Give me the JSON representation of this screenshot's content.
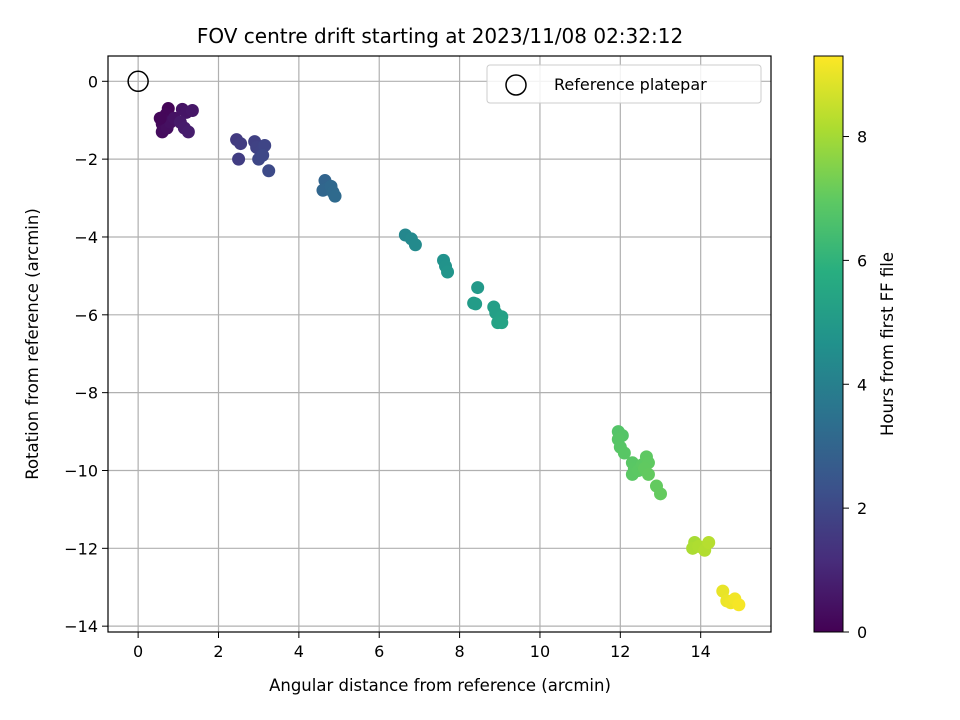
{
  "chart_data": {
    "type": "scatter",
    "title": "FOV centre drift starting at 2023/11/08 02:32:12",
    "xlabel": "Angular distance from reference (arcmin)",
    "ylabel": "Rotation from reference (arcmin)",
    "colorbar_label": "Hours from first FF file",
    "xlim": [
      -0.75,
      15.75
    ],
    "ylim": [
      -14.15,
      0.65
    ],
    "clim": [
      0,
      9.3
    ],
    "x_ticks": [
      0,
      2,
      4,
      6,
      8,
      10,
      12,
      14
    ],
    "y_ticks": [
      0,
      -2,
      -4,
      -6,
      -8,
      -10,
      -12,
      -14
    ],
    "colorbar_ticks": [
      0,
      2,
      4,
      6,
      8
    ],
    "grid": true,
    "colormap": "viridis",
    "legend": {
      "placement": "top-right",
      "entries": [
        "Reference platepar"
      ]
    },
    "reference": {
      "x": 0,
      "y": 0
    },
    "points": [
      {
        "x": 0.75,
        "y": -0.7,
        "c": 0.1
      },
      {
        "x": 0.7,
        "y": -0.85,
        "c": 0.15
      },
      {
        "x": 0.65,
        "y": -1.0,
        "c": 0.2
      },
      {
        "x": 0.6,
        "y": -1.1,
        "c": 0.25
      },
      {
        "x": 0.6,
        "y": -1.3,
        "c": 0.3
      },
      {
        "x": 0.72,
        "y": -1.2,
        "c": 0.35
      },
      {
        "x": 0.8,
        "y": -1.05,
        "c": 0.4
      },
      {
        "x": 0.9,
        "y": -0.95,
        "c": 0.45
      },
      {
        "x": 1.1,
        "y": -0.72,
        "c": 0.5
      },
      {
        "x": 1.2,
        "y": -0.8,
        "c": 0.55
      },
      {
        "x": 1.35,
        "y": -0.75,
        "c": 0.6
      },
      {
        "x": 1.05,
        "y": -1.05,
        "c": 0.65
      },
      {
        "x": 1.15,
        "y": -1.2,
        "c": 0.7
      },
      {
        "x": 1.25,
        "y": -1.3,
        "c": 0.75
      },
      {
        "x": 0.55,
        "y": -0.95,
        "c": 0.15
      },
      {
        "x": 2.45,
        "y": -1.5,
        "c": 1.6
      },
      {
        "x": 2.55,
        "y": -1.6,
        "c": 1.65
      },
      {
        "x": 2.5,
        "y": -2.0,
        "c": 1.7
      },
      {
        "x": 2.9,
        "y": -1.55,
        "c": 1.8
      },
      {
        "x": 2.95,
        "y": -1.7,
        "c": 1.85
      },
      {
        "x": 3.05,
        "y": -1.8,
        "c": 1.9
      },
      {
        "x": 3.15,
        "y": -1.65,
        "c": 1.95
      },
      {
        "x": 3.0,
        "y": -2.0,
        "c": 2.0
      },
      {
        "x": 3.1,
        "y": -1.9,
        "c": 2.05
      },
      {
        "x": 3.25,
        "y": -2.3,
        "c": 2.1
      },
      {
        "x": 4.65,
        "y": -2.55,
        "c": 3.0
      },
      {
        "x": 4.7,
        "y": -2.75,
        "c": 3.05
      },
      {
        "x": 4.6,
        "y": -2.8,
        "c": 3.1
      },
      {
        "x": 4.8,
        "y": -2.7,
        "c": 3.15
      },
      {
        "x": 4.85,
        "y": -2.85,
        "c": 3.2
      },
      {
        "x": 4.9,
        "y": -2.95,
        "c": 3.25
      },
      {
        "x": 6.65,
        "y": -3.95,
        "c": 4.3
      },
      {
        "x": 6.8,
        "y": -4.05,
        "c": 4.35
      },
      {
        "x": 6.9,
        "y": -4.2,
        "c": 4.4
      },
      {
        "x": 7.6,
        "y": -4.6,
        "c": 4.7
      },
      {
        "x": 7.65,
        "y": -4.75,
        "c": 4.75
      },
      {
        "x": 7.7,
        "y": -4.9,
        "c": 4.8
      },
      {
        "x": 8.45,
        "y": -5.3,
        "c": 5.0
      },
      {
        "x": 8.35,
        "y": -5.7,
        "c": 5.05
      },
      {
        "x": 8.4,
        "y": -5.72,
        "c": 5.1
      },
      {
        "x": 8.85,
        "y": -5.8,
        "c": 5.2
      },
      {
        "x": 8.9,
        "y": -5.95,
        "c": 5.25
      },
      {
        "x": 9.05,
        "y": -6.05,
        "c": 5.3
      },
      {
        "x": 8.95,
        "y": -6.2,
        "c": 5.35
      },
      {
        "x": 9.05,
        "y": -6.2,
        "c": 5.4
      },
      {
        "x": 11.95,
        "y": -9.0,
        "c": 6.8
      },
      {
        "x": 12.05,
        "y": -9.1,
        "c": 6.82
      },
      {
        "x": 11.95,
        "y": -9.2,
        "c": 6.84
      },
      {
        "x": 12.0,
        "y": -9.4,
        "c": 6.86
      },
      {
        "x": 12.1,
        "y": -9.55,
        "c": 6.88
      },
      {
        "x": 12.3,
        "y": -9.8,
        "c": 6.9
      },
      {
        "x": 12.35,
        "y": -9.95,
        "c": 6.92
      },
      {
        "x": 12.3,
        "y": -10.1,
        "c": 6.94
      },
      {
        "x": 12.45,
        "y": -10.0,
        "c": 6.96
      },
      {
        "x": 12.55,
        "y": -9.85,
        "c": 6.98
      },
      {
        "x": 12.65,
        "y": -9.65,
        "c": 7.0
      },
      {
        "x": 12.7,
        "y": -9.8,
        "c": 7.02
      },
      {
        "x": 12.6,
        "y": -9.95,
        "c": 7.04
      },
      {
        "x": 12.7,
        "y": -10.1,
        "c": 7.06
      },
      {
        "x": 12.9,
        "y": -10.4,
        "c": 7.08
      },
      {
        "x": 13.0,
        "y": -10.6,
        "c": 7.1
      },
      {
        "x": 13.85,
        "y": -11.85,
        "c": 8.1
      },
      {
        "x": 13.8,
        "y": -12.0,
        "c": 8.15
      },
      {
        "x": 13.95,
        "y": -11.95,
        "c": 8.2
      },
      {
        "x": 14.1,
        "y": -12.05,
        "c": 8.25
      },
      {
        "x": 14.2,
        "y": -11.85,
        "c": 8.3
      },
      {
        "x": 14.55,
        "y": -13.1,
        "c": 9.0
      },
      {
        "x": 14.65,
        "y": -13.35,
        "c": 9.05
      },
      {
        "x": 14.75,
        "y": -13.4,
        "c": 9.1
      },
      {
        "x": 14.85,
        "y": -13.3,
        "c": 9.15
      },
      {
        "x": 14.95,
        "y": -13.45,
        "c": 9.2
      }
    ]
  }
}
